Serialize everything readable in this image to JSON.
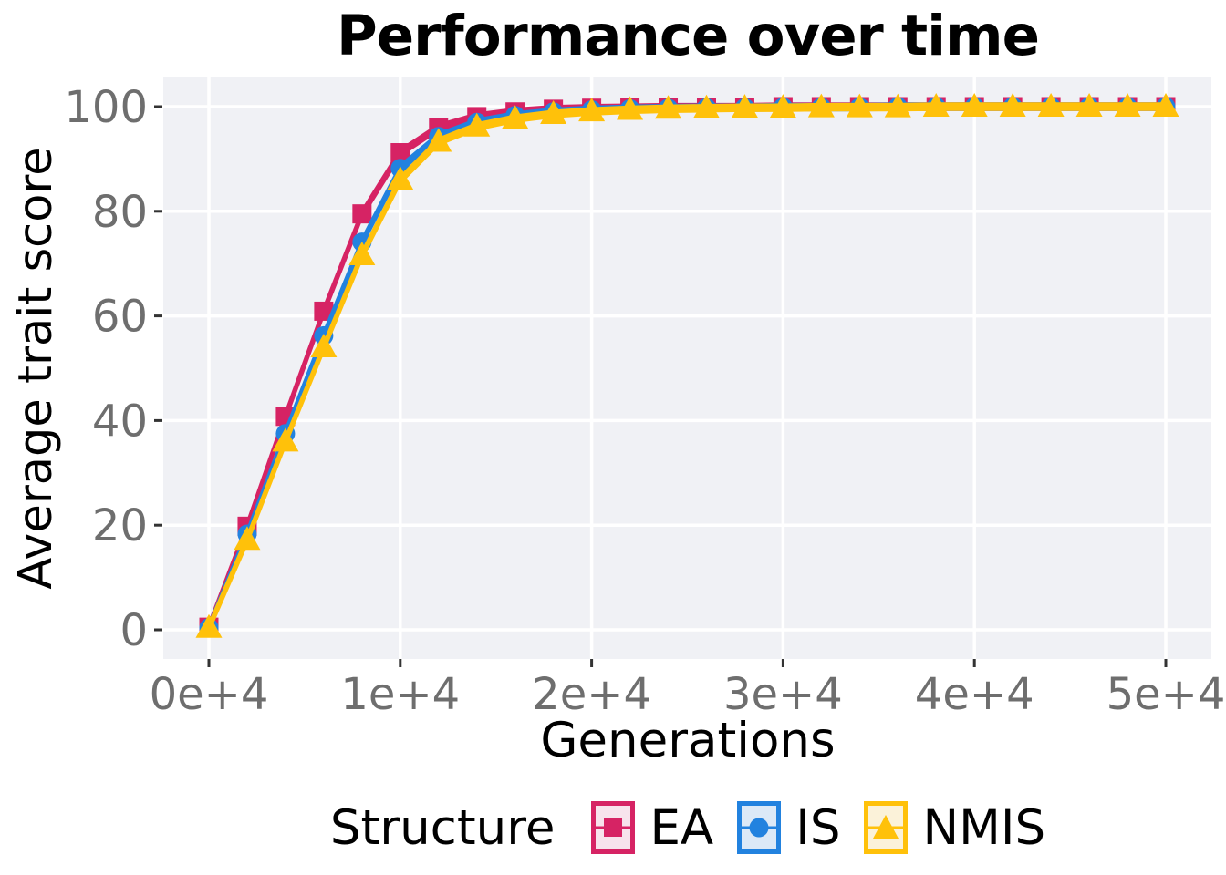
{
  "title": "Performance over time",
  "chart_data": {
    "type": "line",
    "title": "Performance over time",
    "xlabel": "Generations",
    "ylabel": "Average trait score",
    "xlim": [
      0,
      50000
    ],
    "ylim": [
      0,
      100
    ],
    "grid": "major-only",
    "panel_background": "#F0F1F5",
    "grid_color": "#FFFFFF",
    "tick_label_color": "#6E6E6E",
    "tick_mark_color": "#333333",
    "x_ticks": {
      "values": [
        0,
        10000,
        20000,
        30000,
        40000,
        50000
      ],
      "labels": [
        "0e+4",
        "1e+4",
        "2e+4",
        "3e+4",
        "4e+4",
        "5e+4"
      ]
    },
    "y_ticks": {
      "values": [
        0,
        20,
        40,
        60,
        80,
        100
      ],
      "labels": [
        "0",
        "20",
        "40",
        "60",
        "80",
        "100"
      ]
    },
    "x": [
      0,
      2000,
      4000,
      6000,
      8000,
      10000,
      12000,
      14000,
      16000,
      18000,
      20000,
      22000,
      24000,
      26000,
      28000,
      30000,
      32000,
      34000,
      36000,
      38000,
      40000,
      42000,
      44000,
      46000,
      48000,
      50000
    ],
    "series": [
      {
        "name": "EA",
        "color": "#D62364",
        "key_fill": "#F7E3EC",
        "marker": "square",
        "values": [
          0.5,
          19.8,
          40.8,
          60.9,
          79.5,
          91.2,
          96.0,
          98.1,
          99.0,
          99.5,
          99.7,
          99.8,
          99.9,
          99.9,
          99.9,
          100,
          100,
          100,
          100,
          100,
          100,
          100,
          100,
          100,
          100,
          100
        ]
      },
      {
        "name": "IS",
        "color": "#2282DF",
        "key_fill": "#DCE9F7",
        "marker": "circle",
        "values": [
          0.4,
          18.3,
          37.5,
          56.2,
          74.1,
          88.2,
          94.3,
          97.0,
          98.3,
          99.0,
          99.4,
          99.6,
          99.7,
          99.8,
          99.8,
          99.9,
          99.9,
          99.9,
          100,
          100,
          100,
          100,
          100,
          100,
          100,
          100
        ]
      },
      {
        "name": "NMIS",
        "color": "#FFC10A",
        "key_fill": "#FBF2D9",
        "marker": "triangle",
        "values": [
          0.4,
          17.2,
          36.0,
          54.0,
          71.6,
          86.0,
          93.3,
          96.2,
          97.7,
          98.6,
          99.1,
          99.4,
          99.6,
          99.7,
          99.8,
          99.8,
          99.9,
          99.9,
          99.9,
          100,
          100,
          100,
          100,
          100,
          100,
          100
        ]
      }
    ],
    "legend": {
      "title": "Structure",
      "position": "bottom"
    }
  }
}
